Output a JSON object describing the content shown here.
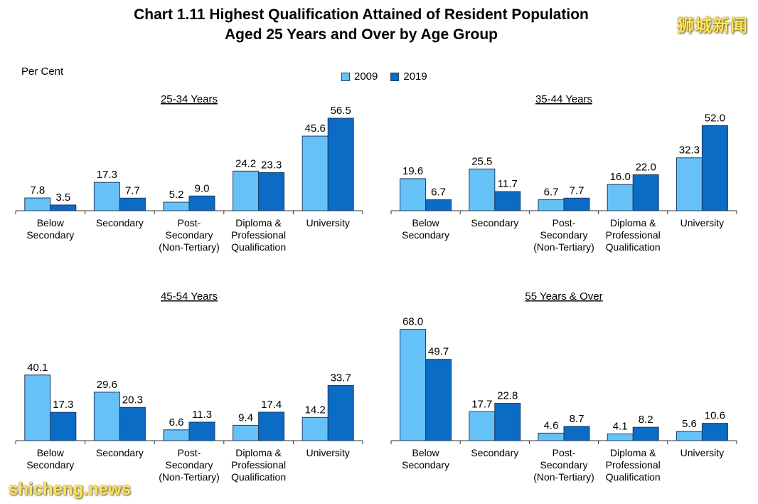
{
  "header": {
    "title_line1": "Chart 1.11  Highest Qualification Attained of Resident Population",
    "title_line2": "Aged 25 Years and Over by Age Group",
    "unit": "Per Cent"
  },
  "watermarks": {
    "top": "狮城新闻",
    "bottom": "shicheng.news"
  },
  "legend": [
    {
      "label": "2009",
      "color": "#66c1f7"
    },
    {
      "label": "2019",
      "color": "#0a6cc4"
    }
  ],
  "chart_data": [
    {
      "type": "bar",
      "title": "25-34 Years",
      "categories": [
        "Below Secondary",
        "Secondary",
        "Post-Secondary (Non-Tertiary)",
        "Diploma & Professional Qualification",
        "University"
      ],
      "category_lines": [
        [
          "Below",
          "Secondary"
        ],
        [
          "Secondary"
        ],
        [
          "Post-",
          "Secondary",
          "(Non-Tertiary)"
        ],
        [
          "Diploma &",
          "Professional",
          "Qualification"
        ],
        [
          "University"
        ]
      ],
      "series": [
        {
          "name": "2009",
          "values": [
            7.8,
            17.3,
            5.2,
            24.2,
            45.6
          ]
        },
        {
          "name": "2019",
          "values": [
            3.5,
            7.7,
            9.0,
            23.3,
            56.5
          ]
        }
      ]
    },
    {
      "type": "bar",
      "title": "35-44 Years",
      "categories": [
        "Below Secondary",
        "Secondary",
        "Post-Secondary (Non-Tertiary)",
        "Diploma & Professional Qualification",
        "University"
      ],
      "category_lines": [
        [
          "Below",
          "Secondary"
        ],
        [
          "Secondary"
        ],
        [
          "Post-",
          "Secondary",
          "(Non-Tertiary)"
        ],
        [
          "Diploma &",
          "Professional",
          "Qualification"
        ],
        [
          "University"
        ]
      ],
      "series": [
        {
          "name": "2009",
          "values": [
            19.6,
            25.5,
            6.7,
            16.0,
            32.3
          ]
        },
        {
          "name": "2019",
          "values": [
            6.7,
            11.7,
            7.7,
            22.0,
            52.0
          ]
        }
      ]
    },
    {
      "type": "bar",
      "title": "45-54 Years",
      "categories": [
        "Below Secondary",
        "Secondary",
        "Post-Secondary (Non-Tertiary)",
        "Diploma & Professional Qualification",
        "University"
      ],
      "category_lines": [
        [
          "Below",
          "Secondary"
        ],
        [
          "Secondary"
        ],
        [
          "Post-",
          "Secondary",
          "(Non-Tertiary)"
        ],
        [
          "Diploma &",
          "Professional",
          "Qualification"
        ],
        [
          "University"
        ]
      ],
      "series": [
        {
          "name": "2009",
          "values": [
            40.1,
            29.6,
            6.6,
            9.4,
            14.2
          ]
        },
        {
          "name": "2019",
          "values": [
            17.3,
            20.3,
            11.3,
            17.4,
            33.7
          ]
        }
      ]
    },
    {
      "type": "bar",
      "title": "55 Years & Over",
      "categories": [
        "Below Secondary",
        "Secondary",
        "Post-Secondary (Non-Tertiary)",
        "Diploma & Professional Qualification",
        "University"
      ],
      "category_lines": [
        [
          "Below",
          "Secondary"
        ],
        [
          "Secondary"
        ],
        [
          "Post-",
          "Secondary",
          "(Non-Tertiary)"
        ],
        [
          "Diploma &",
          "Professional",
          "Qualification"
        ],
        [
          "University"
        ]
      ],
      "series": [
        {
          "name": "2009",
          "values": [
            68.0,
            17.7,
            4.6,
            4.1,
            5.6
          ]
        },
        {
          "name": "2019",
          "values": [
            49.7,
            22.8,
            8.7,
            8.2,
            10.6
          ]
        }
      ]
    }
  ]
}
